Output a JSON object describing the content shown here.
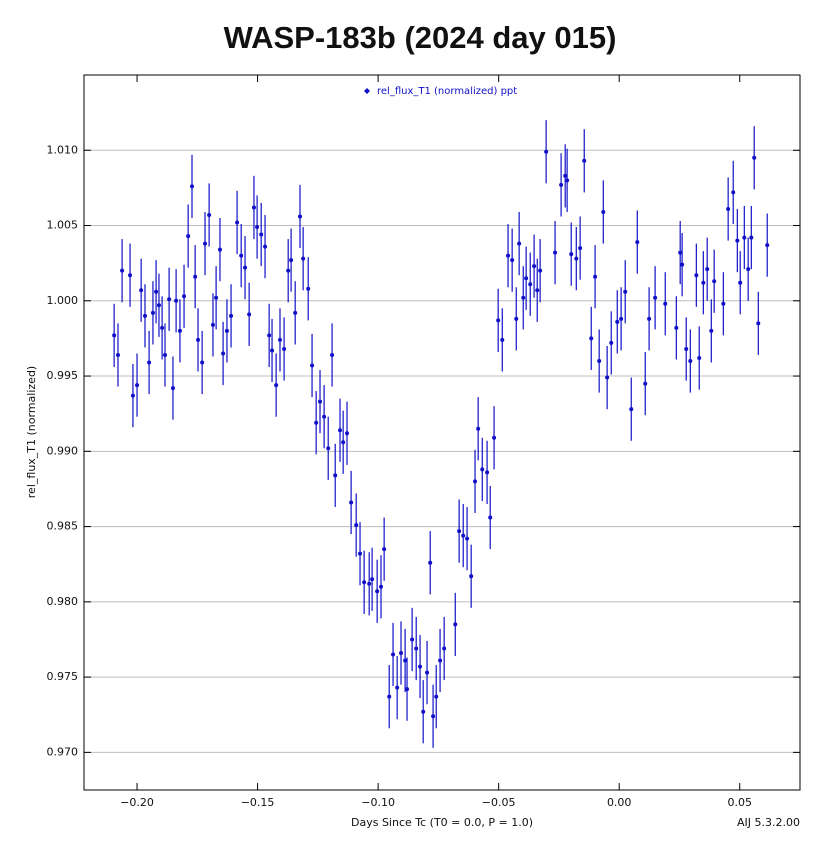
{
  "chart_data": {
    "type": "scatter",
    "title": "WASP-183b (2024 day 015)",
    "x_label": "Days Since Tc (T0 = 0.0, P = 1.0)",
    "y_label": "rel_flux_T1 (normalized)",
    "annotation": "AIJ 5.3.2.00",
    "legend": "top",
    "grid": true,
    "xlim": [
      -0.222,
      0.075
    ],
    "ylim": [
      0.9675,
      1.015
    ],
    "xticks": [
      {
        "value": -0.2,
        "label": "−0.20"
      },
      {
        "value": -0.15,
        "label": "−0.15"
      },
      {
        "value": -0.1,
        "label": "−0.10"
      },
      {
        "value": -0.05,
        "label": "−0.05"
      },
      {
        "value": 0,
        "label": "0.00"
      },
      0.05
    ],
    "yticks": [
      {
        "value": 0.97,
        "label": "0.970"
      },
      0.975,
      {
        "value": 0.98,
        "label": "0.980"
      },
      0.985,
      {
        "value": 0.99,
        "label": "0.990"
      },
      0.995,
      {
        "value": 1.0,
        "label": "1.000"
      },
      1.005,
      {
        "value": 1.01,
        "label": "1.010"
      }
    ],
    "x": [
      -0.2095,
      -0.2079,
      -0.2062,
      -0.2029,
      -0.2017,
      -0.2,
      -0.1983,
      -0.1967,
      -0.195,
      -0.1934,
      -0.1921,
      -0.1909,
      -0.1896,
      -0.1884,
      -0.1867,
      -0.1851,
      -0.1838,
      -0.1822,
      -0.1805,
      -0.1788,
      -0.1772,
      -0.1759,
      -0.1747,
      -0.173,
      -0.1718,
      -0.1701,
      -0.1685,
      -0.1672,
      -0.1656,
      -0.1643,
      -0.1627,
      -0.161,
      -0.1585,
      -0.1568,
      -0.1552,
      -0.1535,
      -0.1515,
      -0.1502,
      -0.1485,
      -0.1469,
      -0.1452,
      -0.144,
      -0.1423,
      -0.1407,
      -0.139,
      -0.1373,
      -0.1361,
      -0.1344,
      -0.1324,
      -0.1311,
      -0.129,
      -0.1274,
      -0.1257,
      -0.1241,
      -0.1224,
      -0.1207,
      -0.1191,
      -0.1178,
      -0.1158,
      -0.1145,
      -0.1129,
      -0.1112,
      -0.1091,
      -0.1075,
      -0.1058,
      -0.1037,
      -0.1025,
      -0.1004,
      -0.0988,
      -0.0975,
      -0.0954,
      -0.0938,
      -0.0921,
      -0.0905,
      -0.0888,
      -0.088,
      -0.0859,
      -0.0842,
      -0.0826,
      -0.0813,
      -0.0797,
      -0.0784,
      -0.0772,
      -0.0759,
      -0.0743,
      -0.0726,
      -0.068,
      -0.0664,
      -0.0647,
      -0.0631,
      -0.0614,
      -0.0598,
      -0.0585,
      -0.0568,
      -0.0548,
      -0.0535,
      -0.0519,
      -0.0502,
      -0.0485,
      -0.0461,
      -0.0444,
      -0.0427,
      -0.0415,
      -0.0398,
      -0.0386,
      -0.0369,
      -0.0353,
      -0.034,
      -0.0328,
      -0.0303,
      -0.0266,
      -0.0241,
      -0.0224,
      -0.0216,
      -0.0199,
      -0.0178,
      -0.0162,
      -0.0145,
      -0.0116,
      -0.01,
      -0.0083,
      -0.0066,
      -0.005,
      -0.0033,
      -0.0008,
      0.0008,
      0.0025,
      0.005,
      0.0075,
      0.0108,
      0.0124,
      0.0149,
      0.0191,
      0.0237,
      0.0253,
      0.0261,
      0.0278,
      0.0295,
      0.032,
      0.0332,
      0.0349,
      0.0365,
      0.0382,
      0.0394,
      0.0432,
      0.0452,
      0.0473,
      0.049,
      0.0502,
      0.0519,
      0.0535,
      0.0548,
      0.056,
      0.0577,
      0.0614
    ],
    "series": [
      {
        "name": "rel_flux_T1 (normalized) ppt",
        "color": "#1010c8",
        "yerr": 0.0021,
        "values": [
          0.9977,
          0.9964,
          1.002,
          1.0017,
          0.9937,
          0.9944,
          1.0007,
          0.999,
          0.9959,
          0.9992,
          1.0006,
          0.9997,
          0.9982,
          0.9964,
          1.0001,
          0.9942,
          1.0,
          0.998,
          1.0003,
          1.0043,
          1.0076,
          1.0016,
          0.9974,
          0.9959,
          1.0038,
          1.0057,
          0.9984,
          1.0002,
          1.0034,
          0.9965,
          0.998,
          0.999,
          1.0052,
          1.003,
          1.0022,
          0.9991,
          1.0062,
          1.0049,
          1.0044,
          1.0036,
          0.9977,
          0.9967,
          0.9944,
          0.9974,
          0.9968,
          1.002,
          1.0027,
          0.9992,
          1.0056,
          1.0028,
          1.0008,
          0.9957,
          0.9919,
          0.9933,
          0.9923,
          0.9902,
          0.9964,
          0.9884,
          0.9914,
          0.9906,
          0.9912,
          0.9866,
          0.9851,
          0.9832,
          0.9813,
          0.9812,
          0.9815,
          0.9807,
          0.981,
          0.9835,
          0.9737,
          0.9765,
          0.9743,
          0.9766,
          0.9761,
          0.9742,
          0.9775,
          0.9769,
          0.9757,
          0.9727,
          0.9753,
          0.9826,
          0.9724,
          0.9737,
          0.9761,
          0.9769,
          0.9785,
          0.9847,
          0.9844,
          0.9842,
          0.9817,
          0.988,
          0.9915,
          0.9888,
          0.9886,
          0.9856,
          0.9909,
          0.9987,
          0.9974,
          1.003,
          1.0027,
          0.9988,
          1.0038,
          1.0002,
          1.0015,
          1.0011,
          1.0023,
          1.0007,
          1.002,
          1.0099,
          1.0032,
          1.0077,
          1.0083,
          1.008,
          1.0031,
          1.0028,
          1.0035,
          1.0093,
          0.9975,
          1.0016,
          0.996,
          1.0059,
          0.9949,
          0.9972,
          0.9986,
          0.9988,
          1.0006,
          0.9928,
          1.0039,
          0.9945,
          0.9988,
          1.0002,
          0.9998,
          0.9982,
          1.0032,
          1.0024,
          0.9968,
          0.996,
          1.0017,
          0.9962,
          1.0012,
          1.0021,
          0.998,
          1.0013,
          0.9998,
          1.0061,
          1.0072,
          1.004,
          1.0012,
          1.0042,
          1.0021,
          1.0042,
          1.0095,
          0.9985,
          1.0037
        ]
      }
    ]
  }
}
